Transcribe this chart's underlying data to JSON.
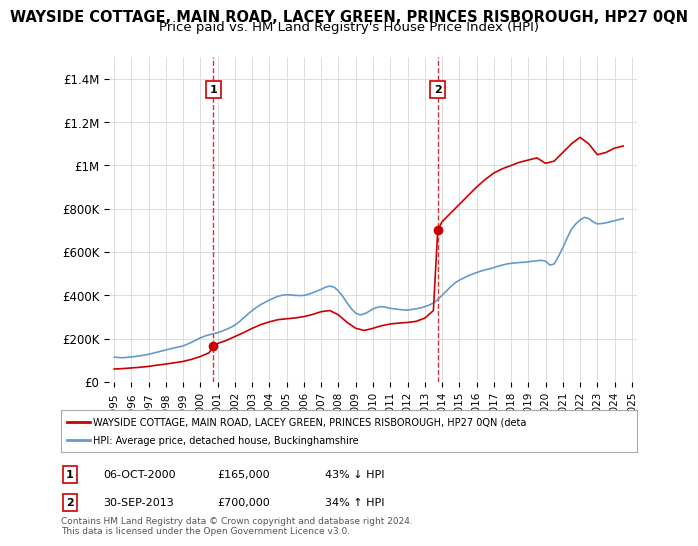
{
  "title": "WAYSIDE COTTAGE, MAIN ROAD, LACEY GREEN, PRINCES RISBOROUGH, HP27 0QN",
  "subtitle": "Price paid vs. HM Land Registry's House Price Index (HPI)",
  "title_fontsize": 10.5,
  "subtitle_fontsize": 9.5,
  "ylim": [
    0,
    1500000
  ],
  "yticks": [
    0,
    200000,
    400000,
    600000,
    800000,
    1000000,
    1200000,
    1400000
  ],
  "ytick_labels": [
    "£0",
    "£200K",
    "£400K",
    "£600K",
    "£800K",
    "£1M",
    "£1.2M",
    "£1.4M"
  ],
  "x_start_year": 1995,
  "x_end_year": 2025,
  "sale1_year": 2000.75,
  "sale1_price": 165000,
  "sale2_year": 2013.75,
  "sale2_price": 700000,
  "property_color": "#cc0000",
  "hpi_color": "#6699cc",
  "vline_color": "#cc0000",
  "background_color": "#ffffff",
  "grid_color": "#dddddd",
  "legend_line1": "WAYSIDE COTTAGE, MAIN ROAD, LACEY GREEN, PRINCES RISBOROUGH, HP27 0QN (deta",
  "legend_line2": "HPI: Average price, detached house, Buckinghamshire",
  "table_row1_num": "1",
  "table_row1_date": "06-OCT-2000",
  "table_row1_price": "£165,000",
  "table_row1_hpi": "43% ↓ HPI",
  "table_row2_num": "2",
  "table_row2_date": "30-SEP-2013",
  "table_row2_price": "£700,000",
  "table_row2_hpi": "34% ↑ HPI",
  "footer": "Contains HM Land Registry data © Crown copyright and database right 2024.\nThis data is licensed under the Open Government Licence v3.0.",
  "hpi_data": {
    "years": [
      1995.0,
      1995.25,
      1995.5,
      1995.75,
      1996.0,
      1996.25,
      1996.5,
      1996.75,
      1997.0,
      1997.25,
      1997.5,
      1997.75,
      1998.0,
      1998.25,
      1998.5,
      1998.75,
      1999.0,
      1999.25,
      1999.5,
      1999.75,
      2000.0,
      2000.25,
      2000.5,
      2000.75,
      2001.0,
      2001.25,
      2001.5,
      2001.75,
      2002.0,
      2002.25,
      2002.5,
      2002.75,
      2003.0,
      2003.25,
      2003.5,
      2003.75,
      2004.0,
      2004.25,
      2004.5,
      2004.75,
      2005.0,
      2005.25,
      2005.5,
      2005.75,
      2006.0,
      2006.25,
      2006.5,
      2006.75,
      2007.0,
      2007.25,
      2007.5,
      2007.75,
      2008.0,
      2008.25,
      2008.5,
      2008.75,
      2009.0,
      2009.25,
      2009.5,
      2009.75,
      2010.0,
      2010.25,
      2010.5,
      2010.75,
      2011.0,
      2011.25,
      2011.5,
      2011.75,
      2012.0,
      2012.25,
      2012.5,
      2012.75,
      2013.0,
      2013.25,
      2013.5,
      2013.75,
      2014.0,
      2014.25,
      2014.5,
      2014.75,
      2015.0,
      2015.25,
      2015.5,
      2015.75,
      2016.0,
      2016.25,
      2016.5,
      2016.75,
      2017.0,
      2017.25,
      2017.5,
      2017.75,
      2018.0,
      2018.25,
      2018.5,
      2018.75,
      2019.0,
      2019.25,
      2019.5,
      2019.75,
      2020.0,
      2020.25,
      2020.5,
      2020.75,
      2021.0,
      2021.25,
      2021.5,
      2021.75,
      2022.0,
      2022.25,
      2022.5,
      2022.75,
      2023.0,
      2023.25,
      2023.5,
      2023.75,
      2024.0,
      2024.25,
      2024.5
    ],
    "values": [
      115000,
      113000,
      112000,
      114000,
      116000,
      118000,
      121000,
      124000,
      128000,
      133000,
      138000,
      143000,
      148000,
      153000,
      158000,
      162000,
      167000,
      175000,
      184000,
      194000,
      204000,
      212000,
      218000,
      223000,
      228000,
      235000,
      243000,
      252000,
      263000,
      278000,
      296000,
      314000,
      330000,
      345000,
      358000,
      368000,
      378000,
      388000,
      396000,
      401000,
      403000,
      402000,
      400000,
      399000,
      400000,
      405000,
      412000,
      420000,
      428000,
      438000,
      443000,
      438000,
      420000,
      395000,
      365000,
      338000,
      318000,
      310000,
      315000,
      325000,
      338000,
      345000,
      348000,
      345000,
      340000,
      338000,
      335000,
      333000,
      332000,
      335000,
      338000,
      342000,
      348000,
      355000,
      365000,
      380000,
      400000,
      420000,
      440000,
      458000,
      470000,
      480000,
      490000,
      498000,
      505000,
      512000,
      518000,
      522000,
      528000,
      535000,
      540000,
      545000,
      548000,
      550000,
      552000,
      553000,
      555000,
      558000,
      560000,
      562000,
      558000,
      540000,
      545000,
      580000,
      620000,
      665000,
      705000,
      730000,
      748000,
      760000,
      755000,
      740000,
      730000,
      732000,
      735000,
      740000,
      745000,
      750000,
      755000
    ]
  },
  "property_data": {
    "years": [
      1995.0,
      1995.5,
      1996.0,
      1996.5,
      1997.0,
      1997.5,
      1998.0,
      1998.5,
      1999.0,
      1999.5,
      2000.0,
      2000.5,
      2000.75,
      2001.0,
      2001.5,
      2002.0,
      2002.5,
      2003.0,
      2003.5,
      2004.0,
      2004.5,
      2005.0,
      2005.5,
      2006.0,
      2006.5,
      2007.0,
      2007.5,
      2008.0,
      2008.5,
      2009.0,
      2009.5,
      2010.0,
      2010.5,
      2011.0,
      2011.5,
      2012.0,
      2012.5,
      2013.0,
      2013.5,
      2013.75,
      2014.0,
      2014.5,
      2015.0,
      2015.5,
      2016.0,
      2016.5,
      2017.0,
      2017.5,
      2018.0,
      2018.5,
      2019.0,
      2019.5,
      2020.0,
      2020.5,
      2021.0,
      2021.5,
      2022.0,
      2022.5,
      2023.0,
      2023.5,
      2024.0,
      2024.5
    ],
    "values": [
      60000,
      62000,
      65000,
      68000,
      72000,
      78000,
      83000,
      89000,
      95000,
      105000,
      118000,
      135000,
      165000,
      178000,
      192000,
      210000,
      228000,
      248000,
      265000,
      278000,
      288000,
      292000,
      296000,
      302000,
      312000,
      325000,
      330000,
      310000,
      275000,
      248000,
      238000,
      248000,
      260000,
      268000,
      272000,
      275000,
      280000,
      295000,
      330000,
      700000,
      740000,
      780000,
      820000,
      860000,
      900000,
      935000,
      965000,
      985000,
      1000000,
      1015000,
      1025000,
      1035000,
      1010000,
      1020000,
      1060000,
      1100000,
      1130000,
      1100000,
      1050000,
      1060000,
      1080000,
      1090000
    ]
  }
}
